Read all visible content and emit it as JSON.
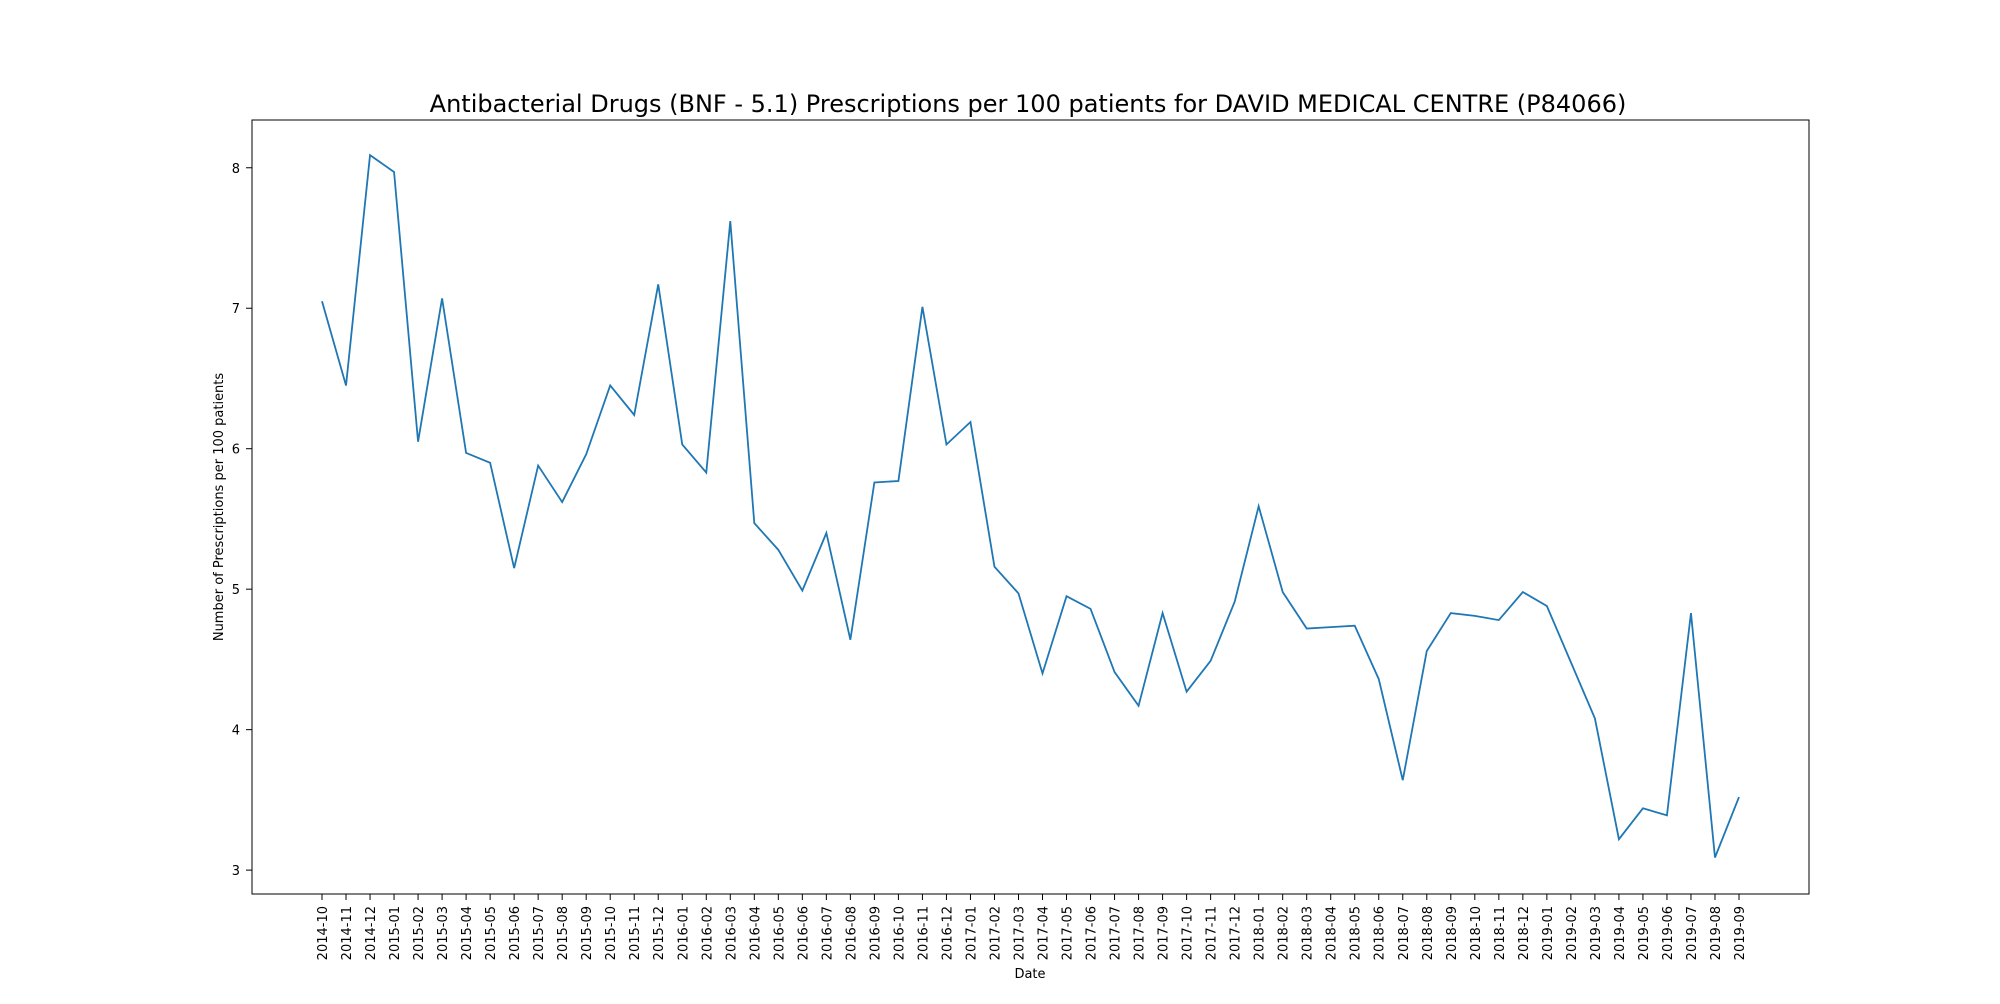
{
  "chart_data": {
    "type": "line",
    "title": "Antibacterial Drugs (BNF - 5.1) Prescriptions per 100 patients for DAVID MEDICAL CENTRE (P84066)",
    "xlabel": "Date",
    "ylabel": "Number of Prescriptions per 100 patients",
    "ylim": [
      2.83,
      8.34
    ],
    "yticks": [
      3,
      4,
      5,
      6,
      7,
      8
    ],
    "grid": false,
    "line_color": "#1f77b4",
    "categories": [
      "2014-10",
      "2014-11",
      "2014-12",
      "2015-01",
      "2015-02",
      "2015-03",
      "2015-04",
      "2015-05",
      "2015-06",
      "2015-07",
      "2015-08",
      "2015-09",
      "2015-10",
      "2015-11",
      "2015-12",
      "2016-01",
      "2016-02",
      "2016-03",
      "2016-04",
      "2016-05",
      "2016-06",
      "2016-07",
      "2016-08",
      "2016-09",
      "2016-10",
      "2016-11",
      "2016-12",
      "2017-01",
      "2017-02",
      "2017-03",
      "2017-04",
      "2017-05",
      "2017-06",
      "2017-07",
      "2017-08",
      "2017-09",
      "2017-10",
      "2017-11",
      "2017-12",
      "2018-01",
      "2018-02",
      "2018-03",
      "2018-04",
      "2018-05",
      "2018-06",
      "2018-07",
      "2018-08",
      "2018-09",
      "2018-10",
      "2018-11",
      "2018-12",
      "2019-01",
      "2019-02",
      "2019-03",
      "2019-04",
      "2019-05",
      "2019-06",
      "2019-07",
      "2019-08",
      "2019-09"
    ],
    "series": [
      {
        "values": [
          7.05,
          6.45,
          8.09,
          7.97,
          6.05,
          7.07,
          5.97,
          5.9,
          5.15,
          5.88,
          5.62,
          5.96,
          6.45,
          6.24,
          7.17,
          6.03,
          5.83,
          7.62,
          5.47,
          5.28,
          4.99,
          5.4,
          4.64,
          5.76,
          5.77,
          7.01,
          6.03,
          6.19,
          5.16,
          4.97,
          4.4,
          4.95,
          4.86,
          4.41,
          4.17,
          4.83,
          4.27,
          4.49,
          4.91,
          5.59,
          4.98,
          4.72,
          4.73,
          4.74,
          4.36,
          3.64,
          4.56,
          4.83,
          4.81,
          4.78,
          4.98,
          4.88,
          4.48,
          4.08,
          3.22,
          3.44,
          3.39,
          4.83,
          3.09,
          3.52
        ]
      }
    ]
  }
}
